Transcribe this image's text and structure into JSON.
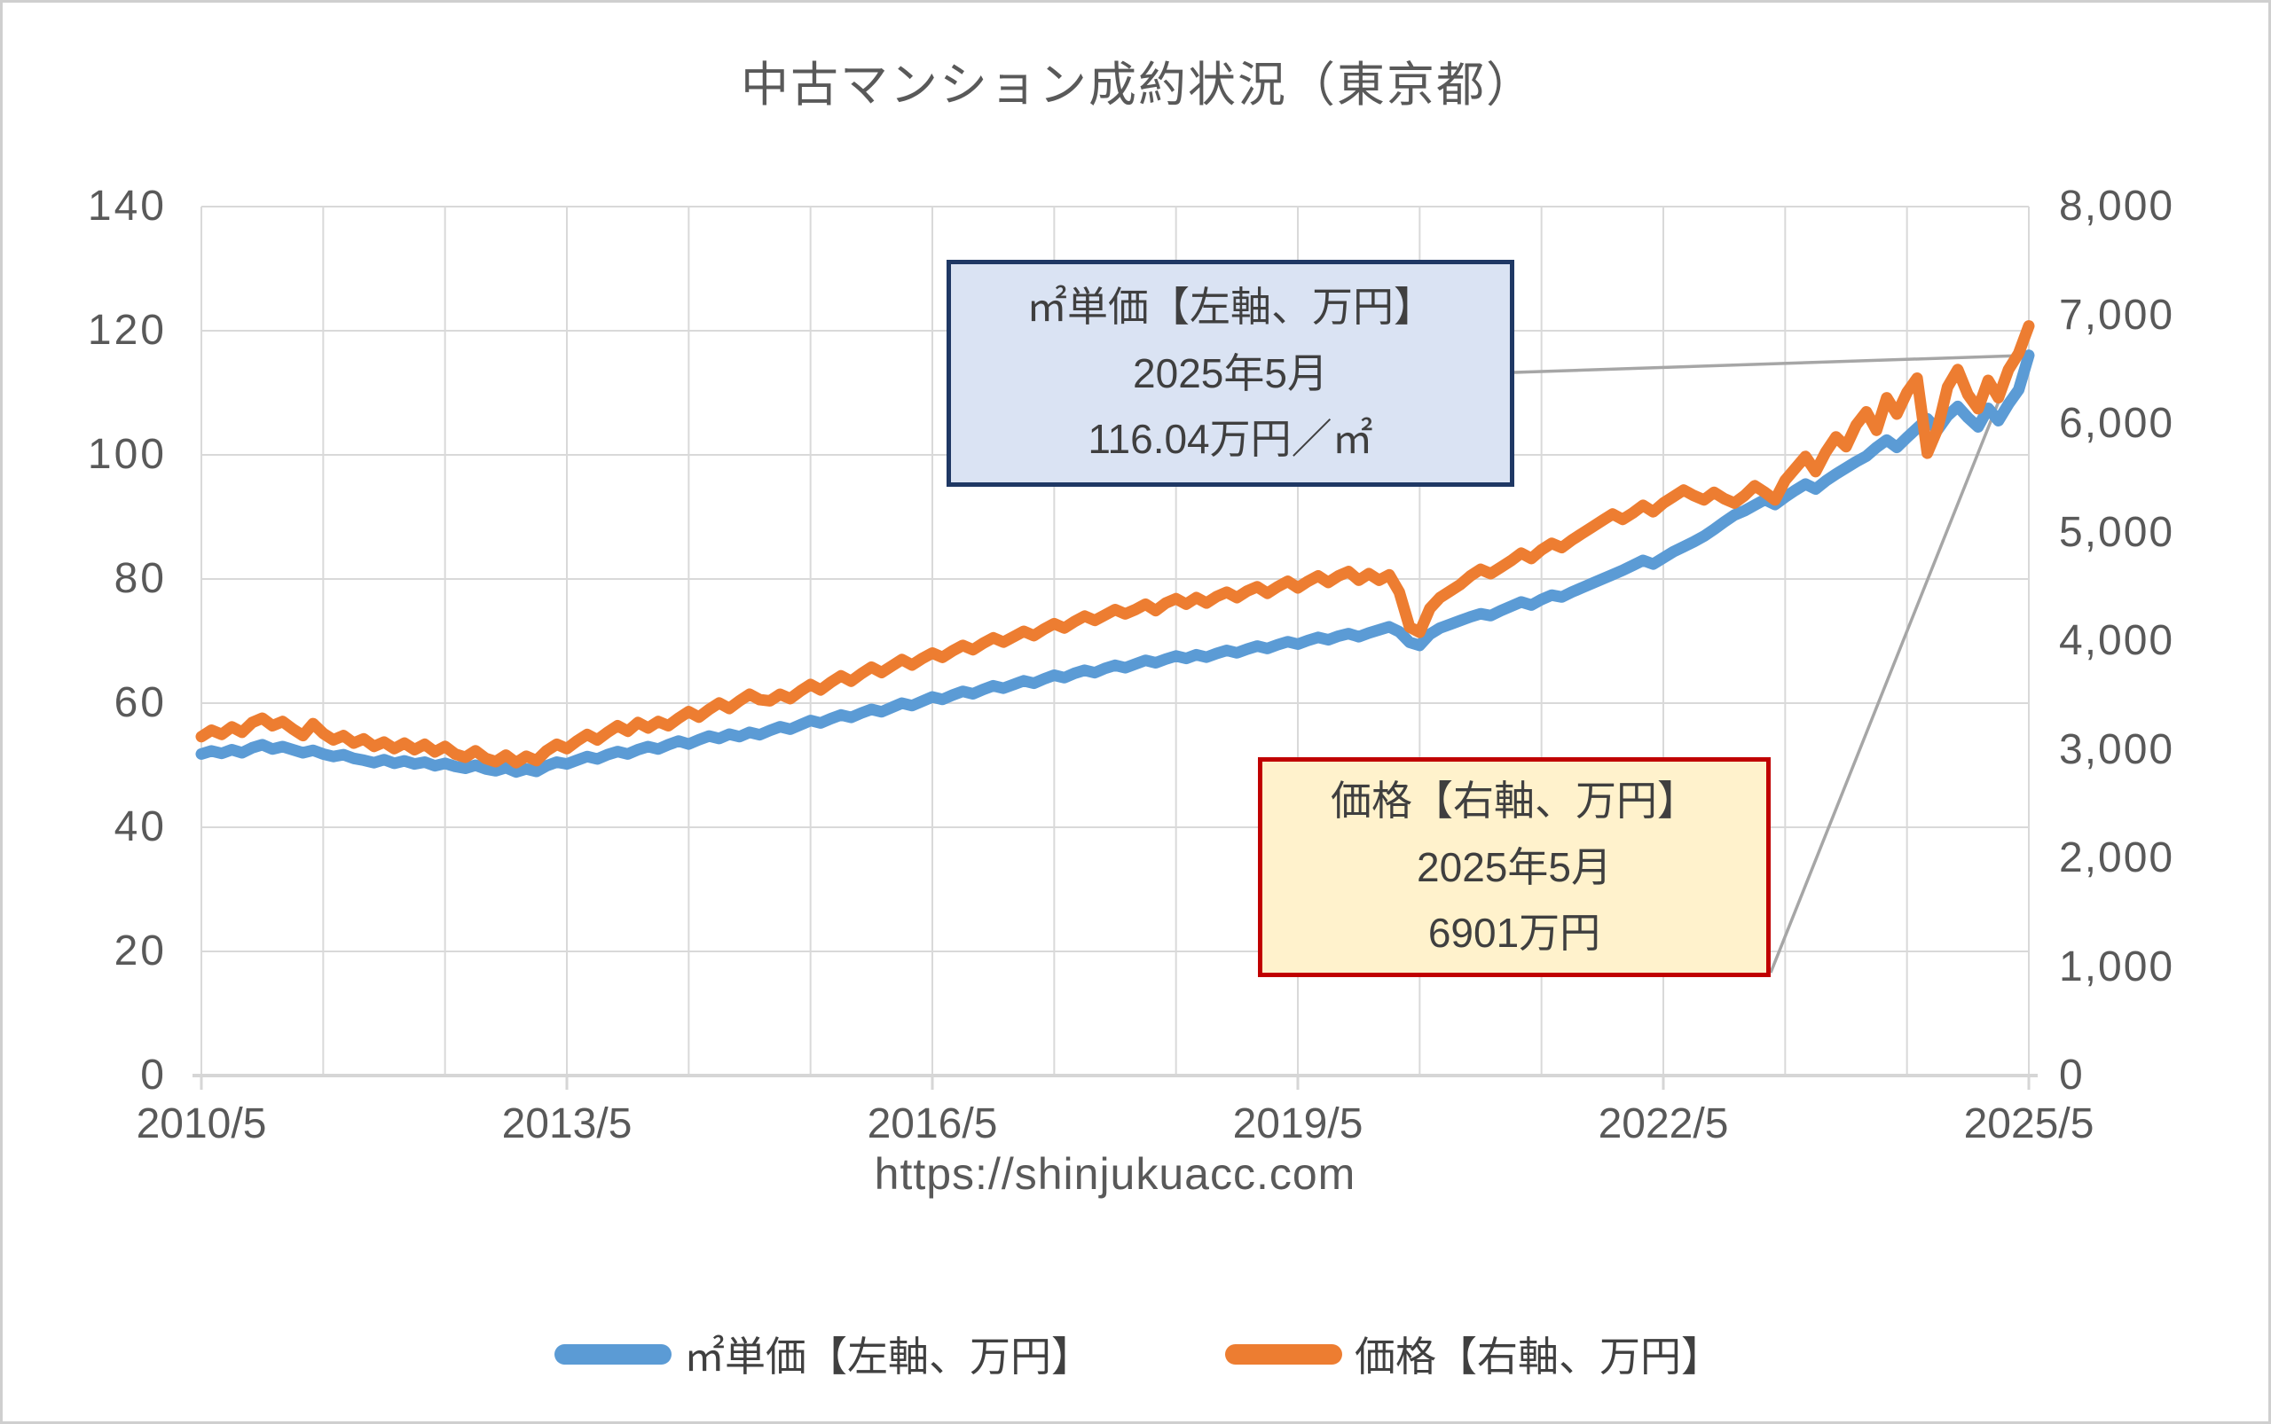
{
  "title": "中古マンション成約状況（東京都）",
  "watermark": "https://shinjukuacc.com",
  "annotations": {
    "unit_price": {
      "line1": "㎡単価【左軸、万円】",
      "line2": "2025年5月",
      "line3": "116.04万円／㎡"
    },
    "price": {
      "line1": "価格【右軸、万円】",
      "line2": "2025年5月",
      "line3": "6901万円"
    }
  },
  "legend": [
    {
      "label": "㎡単価【左軸、万円】",
      "color": "#5B9BD5"
    },
    {
      "label": "価格【右軸、万円】",
      "color": "#ED7D31"
    }
  ],
  "colors": {
    "series_unit_price": "#5B9BD5",
    "series_price": "#ED7D31",
    "gridline": "#D9D9D9",
    "axis_line": "#D6D6D6",
    "leader_line": "#A6A6A6",
    "text": "#595959",
    "callout_unit_bg": "#DAE3F3",
    "callout_unit_border": "#1F3864",
    "callout_price_bg": "#FFF2CC",
    "callout_price_border": "#C00000"
  },
  "chart_data": {
    "type": "line",
    "interval": "monthly",
    "x_start": "2010/5",
    "x_end": "2025/5",
    "x_tick_labels": [
      "2010/5",
      "2013/5",
      "2016/5",
      "2019/5",
      "2022/5",
      "2025/5"
    ],
    "x_tick_month_index": [
      0,
      36,
      72,
      108,
      144,
      180
    ],
    "x_gridline_every_months": 12,
    "grid": true,
    "legend_position": "bottom",
    "left_axis": {
      "min": 0,
      "max": 140,
      "step": 20,
      "tick_labels": [
        "0",
        "20",
        "40",
        "60",
        "80",
        "100",
        "120",
        "140"
      ]
    },
    "right_axis": {
      "min": 0,
      "max": 8000,
      "step": 1000,
      "tick_labels": [
        "0",
        "1,000",
        "2,000",
        "3,000",
        "4,000",
        "5,000",
        "6,000",
        "7,000",
        "8,000"
      ]
    },
    "series": [
      {
        "name": "㎡単価【左軸、万円】",
        "axis": "left",
        "color": "#5B9BD5",
        "last_point": {
          "x": "2025/5",
          "value": 116.04
        },
        "values": [
          51.8,
          52.3,
          51.9,
          52.5,
          52.0,
          52.8,
          53.3,
          52.6,
          53.0,
          52.5,
          52.0,
          52.4,
          51.8,
          51.4,
          51.7,
          51.1,
          50.8,
          50.4,
          50.9,
          50.3,
          50.7,
          50.2,
          50.5,
          49.9,
          50.3,
          49.8,
          49.5,
          50.0,
          49.4,
          49.1,
          49.6,
          48.9,
          49.4,
          49.0,
          49.9,
          50.5,
          50.2,
          50.8,
          51.4,
          51.0,
          51.7,
          52.2,
          51.8,
          52.5,
          53.0,
          52.6,
          53.3,
          53.9,
          53.4,
          54.1,
          54.7,
          54.3,
          55.0,
          54.6,
          55.3,
          54.9,
          55.6,
          56.2,
          55.8,
          56.5,
          57.2,
          56.8,
          57.5,
          58.1,
          57.7,
          58.4,
          59.0,
          58.6,
          59.3,
          60.0,
          59.6,
          60.3,
          61.0,
          60.6,
          61.3,
          61.9,
          61.5,
          62.2,
          62.8,
          62.4,
          63.0,
          63.6,
          63.2,
          63.9,
          64.5,
          64.1,
          64.8,
          65.3,
          64.9,
          65.6,
          66.1,
          65.7,
          66.3,
          66.9,
          66.5,
          67.1,
          67.6,
          67.2,
          67.8,
          67.4,
          68.0,
          68.5,
          68.1,
          68.7,
          69.2,
          68.8,
          69.4,
          69.9,
          69.5,
          70.1,
          70.6,
          70.2,
          70.8,
          71.2,
          70.7,
          71.3,
          71.8,
          72.3,
          71.5,
          69.8,
          69.3,
          71.1,
          72.1,
          72.7,
          73.3,
          73.9,
          74.4,
          74.1,
          74.9,
          75.6,
          76.3,
          75.8,
          76.7,
          77.4,
          77.1,
          77.9,
          78.6,
          79.3,
          80.0,
          80.7,
          81.4,
          82.2,
          83.0,
          82.4,
          83.4,
          84.4,
          85.2,
          86.0,
          86.9,
          88.0,
          89.2,
          90.3,
          91.0,
          91.9,
          92.8,
          92.0,
          93.2,
          94.3,
          95.3,
          94.5,
          95.8,
          96.9,
          97.9,
          98.9,
          99.8,
          101.2,
          102.4,
          101.2,
          102.8,
          104.3,
          105.8,
          104.0,
          106.3,
          107.8,
          106.0,
          104.5,
          107.5,
          105.5,
          108.2,
          110.5,
          116.04
        ]
      },
      {
        "name": "価格【右軸、万円】",
        "axis": "right",
        "color": "#ED7D31",
        "last_point": {
          "x": "2025/5",
          "value": 6901
        },
        "values": [
          3120,
          3180,
          3140,
          3210,
          3160,
          3250,
          3290,
          3220,
          3260,
          3190,
          3130,
          3240,
          3150,
          3090,
          3130,
          3060,
          3100,
          3030,
          3070,
          3010,
          3060,
          3000,
          3050,
          2980,
          3030,
          2960,
          2930,
          2990,
          2920,
          2890,
          2950,
          2880,
          2940,
          2900,
          2990,
          3050,
          3010,
          3080,
          3140,
          3090,
          3160,
          3220,
          3170,
          3250,
          3200,
          3260,
          3220,
          3290,
          3350,
          3300,
          3370,
          3430,
          3380,
          3450,
          3510,
          3460,
          3450,
          3510,
          3470,
          3540,
          3600,
          3550,
          3620,
          3680,
          3630,
          3700,
          3760,
          3710,
          3770,
          3830,
          3780,
          3840,
          3890,
          3850,
          3910,
          3960,
          3920,
          3980,
          4030,
          3990,
          4040,
          4090,
          4050,
          4110,
          4160,
          4120,
          4180,
          4230,
          4190,
          4240,
          4290,
          4250,
          4290,
          4340,
          4280,
          4350,
          4390,
          4340,
          4400,
          4350,
          4410,
          4450,
          4400,
          4460,
          4500,
          4440,
          4500,
          4550,
          4490,
          4550,
          4600,
          4540,
          4600,
          4640,
          4560,
          4620,
          4560,
          4610,
          4450,
          4130,
          4080,
          4300,
          4400,
          4460,
          4520,
          4600,
          4660,
          4620,
          4680,
          4740,
          4810,
          4760,
          4840,
          4900,
          4860,
          4930,
          4990,
          5050,
          5110,
          5170,
          5120,
          5180,
          5250,
          5190,
          5270,
          5330,
          5390,
          5340,
          5300,
          5370,
          5310,
          5270,
          5340,
          5430,
          5370,
          5300,
          5480,
          5590,
          5700,
          5560,
          5740,
          5880,
          5790,
          5990,
          6110,
          5940,
          6240,
          6090,
          6290,
          6420,
          5730,
          5950,
          6340,
          6500,
          6270,
          6140,
          6400,
          6240,
          6500,
          6650,
          6901
        ]
      }
    ]
  }
}
